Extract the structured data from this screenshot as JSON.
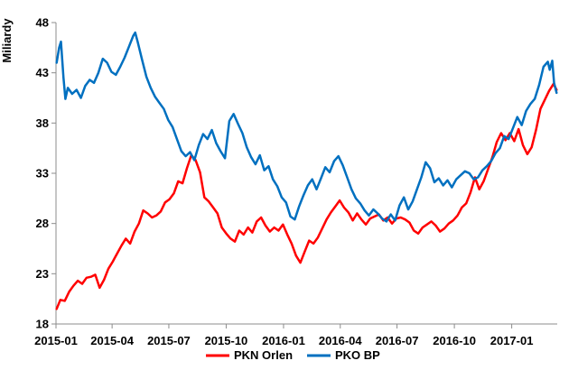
{
  "chart_data": {
    "type": "line",
    "title": "",
    "xlabel": "",
    "ylabel": "Miliardy",
    "ylim": [
      18,
      48
    ],
    "yticks": [
      18,
      23,
      28,
      33,
      38,
      43,
      48
    ],
    "xlim": [
      "2015-01-01",
      "2017-03-15"
    ],
    "xticks": [
      "2015-01",
      "2015-04",
      "2015-07",
      "2015-10",
      "2016-01",
      "2016-04",
      "2016-07",
      "2016-10",
      "2017-01"
    ],
    "grid": false,
    "legend_position": "bottom-center",
    "series": [
      {
        "name": "PKN Orlen",
        "color": "#ff0000",
        "points": [
          [
            "2015-01-02",
            19.5
          ],
          [
            "2015-01-08",
            20.4
          ],
          [
            "2015-01-15",
            20.3
          ],
          [
            "2015-01-22",
            21.2
          ],
          [
            "2015-01-29",
            21.8
          ],
          [
            "2015-02-05",
            22.3
          ],
          [
            "2015-02-12",
            22.0
          ],
          [
            "2015-02-19",
            22.6
          ],
          [
            "2015-02-26",
            22.7
          ],
          [
            "2015-03-05",
            22.9
          ],
          [
            "2015-03-12",
            21.6
          ],
          [
            "2015-03-19",
            22.4
          ],
          [
            "2015-03-26",
            23.5
          ],
          [
            "2015-04-02",
            24.2
          ],
          [
            "2015-04-09",
            25.0
          ],
          [
            "2015-04-16",
            25.8
          ],
          [
            "2015-04-23",
            26.5
          ],
          [
            "2015-04-30",
            26.0
          ],
          [
            "2015-05-07",
            27.2
          ],
          [
            "2015-05-14",
            28.0
          ],
          [
            "2015-05-21",
            29.3
          ],
          [
            "2015-05-28",
            29.0
          ],
          [
            "2015-06-04",
            28.6
          ],
          [
            "2015-06-11",
            28.8
          ],
          [
            "2015-06-18",
            29.2
          ],
          [
            "2015-06-25",
            30.1
          ],
          [
            "2015-07-02",
            30.4
          ],
          [
            "2015-07-09",
            31.0
          ],
          [
            "2015-07-16",
            32.2
          ],
          [
            "2015-07-23",
            32.0
          ],
          [
            "2015-07-30",
            33.5
          ],
          [
            "2015-08-06",
            34.8
          ],
          [
            "2015-08-13",
            34.3
          ],
          [
            "2015-08-20",
            33.1
          ],
          [
            "2015-08-27",
            30.6
          ],
          [
            "2015-09-03",
            30.2
          ],
          [
            "2015-09-10",
            29.6
          ],
          [
            "2015-09-17",
            29.0
          ],
          [
            "2015-09-24",
            27.6
          ],
          [
            "2015-10-01",
            27.0
          ],
          [
            "2015-10-08",
            26.5
          ],
          [
            "2015-10-15",
            26.2
          ],
          [
            "2015-10-22",
            27.3
          ],
          [
            "2015-10-29",
            26.9
          ],
          [
            "2015-11-05",
            27.6
          ],
          [
            "2015-11-12",
            27.1
          ],
          [
            "2015-11-19",
            28.2
          ],
          [
            "2015-11-26",
            28.6
          ],
          [
            "2015-12-03",
            27.8
          ],
          [
            "2015-12-10",
            27.2
          ],
          [
            "2015-12-17",
            27.6
          ],
          [
            "2015-12-24",
            27.3
          ],
          [
            "2015-12-31",
            27.9
          ],
          [
            "2016-01-07",
            26.9
          ],
          [
            "2016-01-14",
            26.0
          ],
          [
            "2016-01-21",
            24.8
          ],
          [
            "2016-01-28",
            24.1
          ],
          [
            "2016-02-04",
            25.2
          ],
          [
            "2016-02-11",
            26.3
          ],
          [
            "2016-02-18",
            26.0
          ],
          [
            "2016-02-25",
            26.6
          ],
          [
            "2016-03-03",
            27.5
          ],
          [
            "2016-03-10",
            28.4
          ],
          [
            "2016-03-17",
            29.1
          ],
          [
            "2016-03-24",
            29.7
          ],
          [
            "2016-03-31",
            30.3
          ],
          [
            "2016-04-07",
            29.6
          ],
          [
            "2016-04-14",
            29.1
          ],
          [
            "2016-04-21",
            28.3
          ],
          [
            "2016-04-28",
            29.0
          ],
          [
            "2016-05-05",
            28.4
          ],
          [
            "2016-05-12",
            27.9
          ],
          [
            "2016-05-19",
            28.5
          ],
          [
            "2016-05-26",
            28.7
          ],
          [
            "2016-06-02",
            28.9
          ],
          [
            "2016-06-09",
            28.3
          ],
          [
            "2016-06-16",
            28.6
          ],
          [
            "2016-06-23",
            28.0
          ],
          [
            "2016-06-30",
            28.5
          ],
          [
            "2016-07-07",
            28.6
          ],
          [
            "2016-07-14",
            28.4
          ],
          [
            "2016-07-21",
            28.1
          ],
          [
            "2016-07-28",
            27.3
          ],
          [
            "2016-08-04",
            27.0
          ],
          [
            "2016-08-11",
            27.6
          ],
          [
            "2016-08-18",
            27.9
          ],
          [
            "2016-08-25",
            28.2
          ],
          [
            "2016-09-01",
            27.8
          ],
          [
            "2016-09-08",
            27.2
          ],
          [
            "2016-09-15",
            27.5
          ],
          [
            "2016-09-22",
            28.0
          ],
          [
            "2016-09-29",
            28.3
          ],
          [
            "2016-10-06",
            28.8
          ],
          [
            "2016-10-13",
            29.6
          ],
          [
            "2016-10-20",
            30.0
          ],
          [
            "2016-10-27",
            31.1
          ],
          [
            "2016-11-03",
            32.6
          ],
          [
            "2016-11-10",
            31.4
          ],
          [
            "2016-11-17",
            32.2
          ],
          [
            "2016-11-24",
            33.4
          ],
          [
            "2016-12-01",
            34.6
          ],
          [
            "2016-12-08",
            36.1
          ],
          [
            "2016-12-15",
            37.0
          ],
          [
            "2016-12-22",
            36.3
          ],
          [
            "2016-12-29",
            37.0
          ],
          [
            "2017-01-05",
            36.2
          ],
          [
            "2017-01-12",
            37.4
          ],
          [
            "2017-01-19",
            35.8
          ],
          [
            "2017-01-26",
            34.9
          ],
          [
            "2017-02-02",
            35.6
          ],
          [
            "2017-02-09",
            37.3
          ],
          [
            "2017-02-16",
            39.4
          ],
          [
            "2017-02-23",
            40.3
          ],
          [
            "2017-03-02",
            41.2
          ],
          [
            "2017-03-09",
            41.9
          ],
          [
            "2017-03-14",
            41.3
          ]
        ]
      },
      {
        "name": "PKO BP",
        "color": "#0070c0",
        "points": [
          [
            "2015-01-02",
            44.0
          ],
          [
            "2015-01-06",
            45.5
          ],
          [
            "2015-01-09",
            46.1
          ],
          [
            "2015-01-13",
            42.5
          ],
          [
            "2015-01-16",
            40.4
          ],
          [
            "2015-01-20",
            41.5
          ],
          [
            "2015-01-27",
            40.9
          ],
          [
            "2015-02-03",
            41.3
          ],
          [
            "2015-02-10",
            40.5
          ],
          [
            "2015-02-17",
            41.7
          ],
          [
            "2015-02-24",
            42.3
          ],
          [
            "2015-03-03",
            42.0
          ],
          [
            "2015-03-10",
            43.0
          ],
          [
            "2015-03-17",
            44.4
          ],
          [
            "2015-03-24",
            44.0
          ],
          [
            "2015-03-31",
            43.1
          ],
          [
            "2015-04-07",
            42.8
          ],
          [
            "2015-04-14",
            43.6
          ],
          [
            "2015-04-21",
            44.5
          ],
          [
            "2015-04-28",
            45.6
          ],
          [
            "2015-05-05",
            46.7
          ],
          [
            "2015-05-08",
            47.0
          ],
          [
            "2015-05-12",
            46.1
          ],
          [
            "2015-05-19",
            44.3
          ],
          [
            "2015-05-26",
            42.6
          ],
          [
            "2015-06-02",
            41.5
          ],
          [
            "2015-06-09",
            40.6
          ],
          [
            "2015-06-16",
            40.0
          ],
          [
            "2015-06-23",
            39.4
          ],
          [
            "2015-06-30",
            38.3
          ],
          [
            "2015-07-07",
            37.6
          ],
          [
            "2015-07-14",
            36.4
          ],
          [
            "2015-07-21",
            35.2
          ],
          [
            "2015-07-28",
            34.7
          ],
          [
            "2015-08-04",
            35.1
          ],
          [
            "2015-08-11",
            34.3
          ],
          [
            "2015-08-18",
            35.8
          ],
          [
            "2015-08-25",
            36.9
          ],
          [
            "2015-09-01",
            36.4
          ],
          [
            "2015-09-08",
            37.3
          ],
          [
            "2015-09-15",
            36.0
          ],
          [
            "2015-09-22",
            35.2
          ],
          [
            "2015-09-29",
            34.5
          ],
          [
            "2015-10-06",
            38.2
          ],
          [
            "2015-10-13",
            38.9
          ],
          [
            "2015-10-20",
            37.9
          ],
          [
            "2015-10-27",
            37.0
          ],
          [
            "2015-11-03",
            35.6
          ],
          [
            "2015-11-10",
            34.6
          ],
          [
            "2015-11-17",
            33.9
          ],
          [
            "2015-11-24",
            34.8
          ],
          [
            "2015-12-01",
            33.3
          ],
          [
            "2015-12-08",
            33.7
          ],
          [
            "2015-12-15",
            32.4
          ],
          [
            "2015-12-22",
            31.7
          ],
          [
            "2015-12-29",
            30.6
          ],
          [
            "2016-01-05",
            30.1
          ],
          [
            "2016-01-12",
            28.7
          ],
          [
            "2016-01-19",
            28.4
          ],
          [
            "2016-01-26",
            29.7
          ],
          [
            "2016-02-02",
            30.8
          ],
          [
            "2016-02-09",
            31.8
          ],
          [
            "2016-02-16",
            32.4
          ],
          [
            "2016-02-23",
            31.4
          ],
          [
            "2016-03-01",
            32.5
          ],
          [
            "2016-03-08",
            33.6
          ],
          [
            "2016-03-15",
            33.1
          ],
          [
            "2016-03-22",
            34.2
          ],
          [
            "2016-03-29",
            34.7
          ],
          [
            "2016-04-05",
            33.8
          ],
          [
            "2016-04-12",
            32.6
          ],
          [
            "2016-04-19",
            31.4
          ],
          [
            "2016-04-26",
            30.5
          ],
          [
            "2016-05-03",
            30.0
          ],
          [
            "2016-05-10",
            29.3
          ],
          [
            "2016-05-17",
            28.8
          ],
          [
            "2016-05-24",
            29.4
          ],
          [
            "2016-05-31",
            29.0
          ],
          [
            "2016-06-07",
            28.5
          ],
          [
            "2016-06-14",
            28.2
          ],
          [
            "2016-06-21",
            28.9
          ],
          [
            "2016-06-28",
            28.3
          ],
          [
            "2016-07-05",
            29.8
          ],
          [
            "2016-07-12",
            30.6
          ],
          [
            "2016-07-19",
            29.4
          ],
          [
            "2016-07-26",
            30.2
          ],
          [
            "2016-08-02",
            31.4
          ],
          [
            "2016-08-09",
            32.6
          ],
          [
            "2016-08-16",
            34.1
          ],
          [
            "2016-08-23",
            33.5
          ],
          [
            "2016-08-30",
            32.1
          ],
          [
            "2016-09-06",
            32.5
          ],
          [
            "2016-09-13",
            31.8
          ],
          [
            "2016-09-20",
            32.3
          ],
          [
            "2016-09-27",
            31.6
          ],
          [
            "2016-10-04",
            32.4
          ],
          [
            "2016-10-11",
            32.8
          ],
          [
            "2016-10-18",
            33.2
          ],
          [
            "2016-10-25",
            33.0
          ],
          [
            "2016-11-01",
            32.4
          ],
          [
            "2016-11-08",
            32.6
          ],
          [
            "2016-11-15",
            33.3
          ],
          [
            "2016-11-22",
            33.7
          ],
          [
            "2016-11-29",
            34.2
          ],
          [
            "2016-12-06",
            35.0
          ],
          [
            "2016-12-13",
            35.5
          ],
          [
            "2016-12-20",
            36.7
          ],
          [
            "2016-12-27",
            36.4
          ],
          [
            "2017-01-03",
            37.5
          ],
          [
            "2017-01-10",
            38.6
          ],
          [
            "2017-01-17",
            37.8
          ],
          [
            "2017-01-24",
            39.2
          ],
          [
            "2017-01-31",
            39.9
          ],
          [
            "2017-02-07",
            40.4
          ],
          [
            "2017-02-14",
            41.8
          ],
          [
            "2017-02-21",
            43.6
          ],
          [
            "2017-02-28",
            44.1
          ],
          [
            "2017-03-03",
            43.3
          ],
          [
            "2017-03-07",
            44.2
          ],
          [
            "2017-03-10",
            42.0
          ],
          [
            "2017-03-14",
            41.0
          ]
        ]
      }
    ]
  }
}
